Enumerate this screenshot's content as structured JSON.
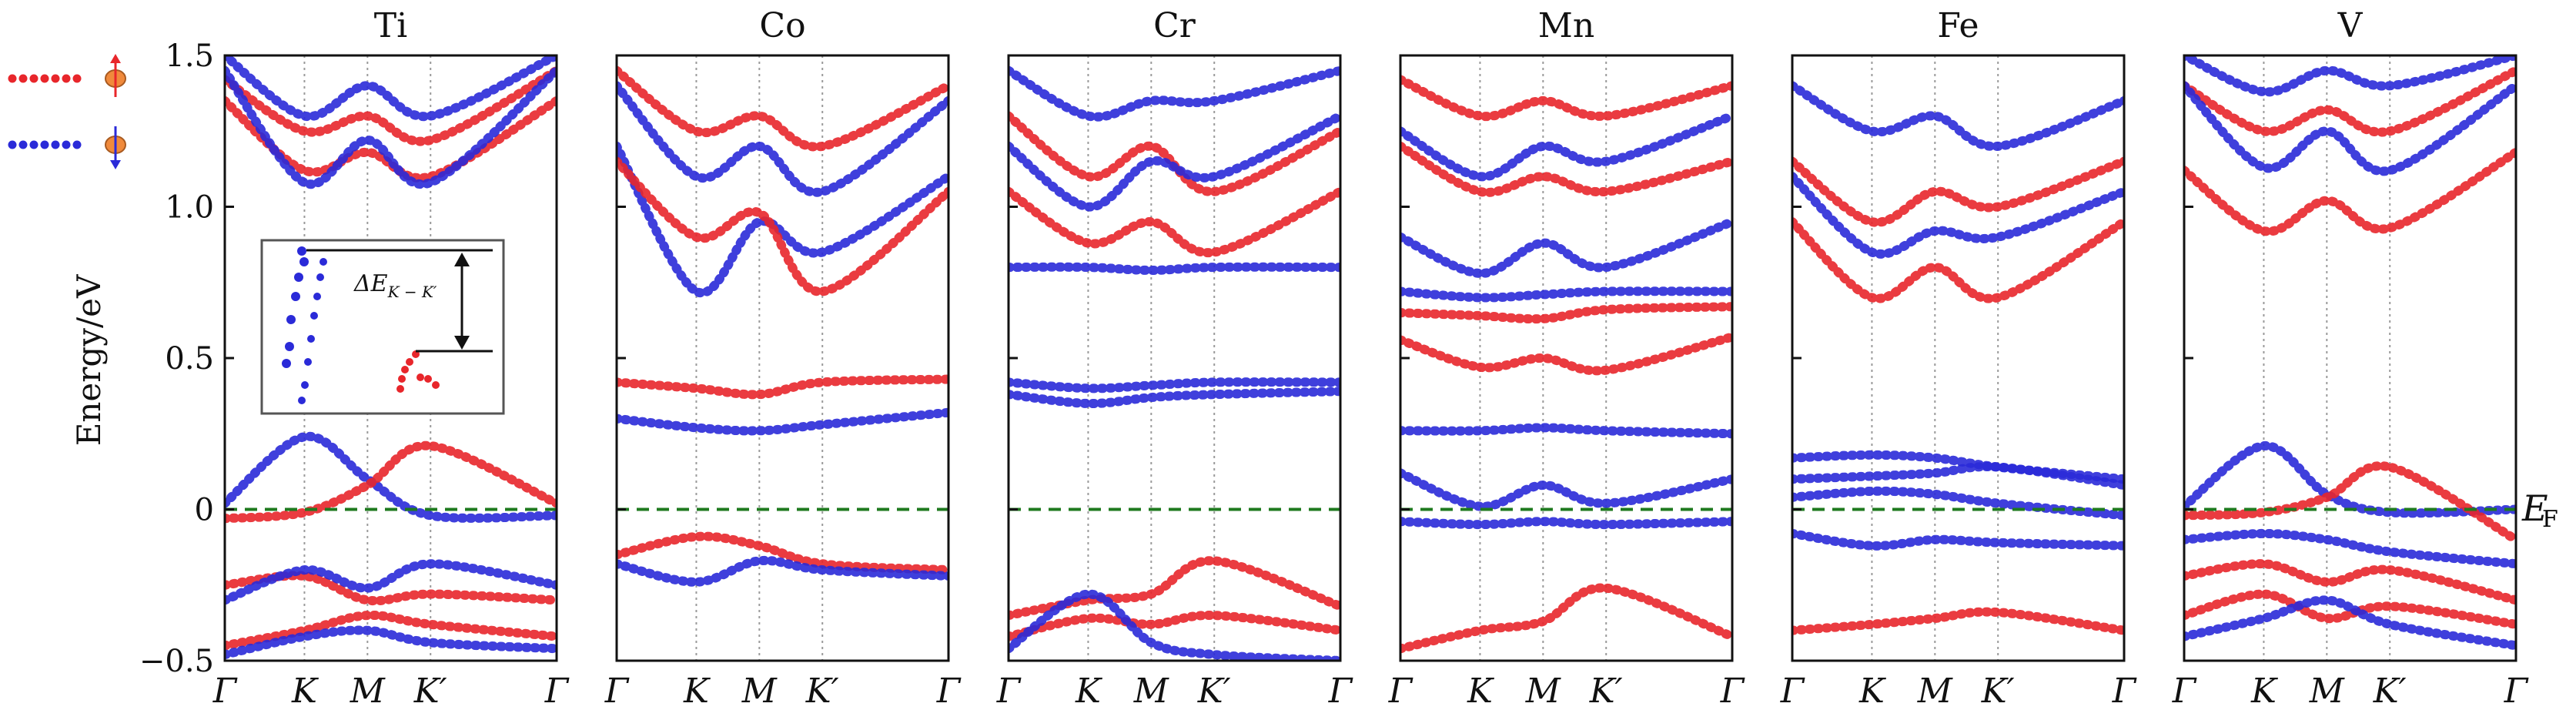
{
  "figure": {
    "ylabel": "Energy/eV",
    "fermi_label_main": "E",
    "fermi_label_sub": "F",
    "legend": [
      {
        "name": "spin-up",
        "color": "#e8262b",
        "icon": "spin-up-arrow-icon"
      },
      {
        "name": "spin-down",
        "color": "#2a2ad8",
        "icon": "spin-down-arrow-icon"
      }
    ],
    "colors": {
      "spin_up": "#e8262b",
      "spin_down": "#2a2ad8",
      "fermi": "#1f7a1f",
      "ball": "#f08a3c"
    },
    "inset": {
      "label_prefix": "ΔE",
      "label_sub": "K − K′"
    }
  },
  "chart_data": [
    {
      "type": "line",
      "title": "Ti",
      "xlabel": "",
      "ylabel": "Energy/eV",
      "ylim": [
        -0.5,
        1.5
      ],
      "yticks": [
        "1.5",
        "1.0",
        "0.5",
        "0",
        "−0.5"
      ],
      "ytick_values": [
        1.5,
        1.0,
        0.5,
        0,
        -0.5
      ],
      "kpoints": [
        "Γ",
        "K",
        "M",
        "K′",
        "Γ"
      ],
      "kpos": [
        0,
        0.24,
        0.43,
        0.62,
        1
      ],
      "fermi_level": 0,
      "series": [
        {
          "name": "Ti up 1",
          "spin": "up",
          "energies": [
            1.35,
            1.12,
            1.18,
            1.1,
            1.35
          ]
        },
        {
          "name": "Ti up 2",
          "spin": "up",
          "energies": [
            1.42,
            1.25,
            1.3,
            1.22,
            1.45
          ]
        },
        {
          "name": "Ti down 1",
          "spin": "down",
          "energies": [
            1.45,
            1.08,
            1.22,
            1.08,
            1.45
          ]
        },
        {
          "name": "Ti down 2",
          "spin": "down",
          "energies": [
            1.5,
            1.3,
            1.4,
            1.3,
            1.5
          ]
        },
        {
          "name": "Ti down valence",
          "spin": "down",
          "energies": [
            0.02,
            0.24,
            0.1,
            -0.02,
            -0.02
          ]
        },
        {
          "name": "Ti up valence",
          "spin": "up",
          "energies": [
            -0.03,
            -0.01,
            0.08,
            0.21,
            0.02
          ]
        },
        {
          "name": "Ti up low 1",
          "spin": "up",
          "energies": [
            -0.25,
            -0.22,
            -0.3,
            -0.28,
            -0.3
          ]
        },
        {
          "name": "Ti down low 1",
          "spin": "down",
          "energies": [
            -0.3,
            -0.2,
            -0.26,
            -0.18,
            -0.25
          ]
        },
        {
          "name": "Ti up low 2",
          "spin": "up",
          "energies": [
            -0.45,
            -0.4,
            -0.35,
            -0.38,
            -0.42
          ]
        },
        {
          "name": "Ti down low 2",
          "spin": "down",
          "energies": [
            -0.48,
            -0.42,
            -0.4,
            -0.44,
            -0.46
          ]
        }
      ]
    },
    {
      "type": "line",
      "title": "Co",
      "xlabel": "",
      "ylabel": "",
      "ylim": [
        -0.5,
        1.5
      ],
      "kpoints": [
        "Γ",
        "K",
        "M",
        "K′",
        "Γ"
      ],
      "kpos": [
        0,
        0.24,
        0.43,
        0.62,
        1
      ],
      "fermi_level": 0,
      "series": [
        {
          "name": "Co down 1",
          "spin": "down",
          "energies": [
            1.2,
            0.72,
            0.95,
            0.85,
            1.1
          ]
        },
        {
          "name": "Co up 1",
          "spin": "up",
          "energies": [
            1.15,
            0.9,
            0.98,
            0.72,
            1.05
          ]
        },
        {
          "name": "Co down 2",
          "spin": "down",
          "energies": [
            1.4,
            1.1,
            1.2,
            1.05,
            1.35
          ]
        },
        {
          "name": "Co up 2",
          "spin": "up",
          "energies": [
            1.45,
            1.25,
            1.3,
            1.2,
            1.4
          ]
        },
        {
          "name": "Co up mid",
          "spin": "up",
          "energies": [
            0.42,
            0.4,
            0.38,
            0.42,
            0.43
          ]
        },
        {
          "name": "Co down mid",
          "spin": "down",
          "energies": [
            0.3,
            0.27,
            0.26,
            0.28,
            0.32
          ]
        },
        {
          "name": "Co up low",
          "spin": "up",
          "energies": [
            -0.15,
            -0.09,
            -0.12,
            -0.18,
            -0.2
          ]
        },
        {
          "name": "Co down low",
          "spin": "down",
          "energies": [
            -0.18,
            -0.24,
            -0.17,
            -0.2,
            -0.22
          ]
        }
      ]
    },
    {
      "type": "line",
      "title": "Cr",
      "xlabel": "",
      "ylabel": "",
      "ylim": [
        -0.5,
        1.5
      ],
      "kpoints": [
        "Γ",
        "K",
        "M",
        "K′",
        "Γ"
      ],
      "kpos": [
        0,
        0.24,
        0.43,
        0.62,
        1
      ],
      "fermi_level": 0,
      "series": [
        {
          "name": "Cr up 1",
          "spin": "up",
          "energies": [
            1.05,
            0.88,
            0.95,
            0.85,
            1.05
          ]
        },
        {
          "name": "Cr up 2",
          "spin": "up",
          "energies": [
            1.3,
            1.1,
            1.2,
            1.05,
            1.25
          ]
        },
        {
          "name": "Cr down 1",
          "spin": "down",
          "energies": [
            1.2,
            1.0,
            1.15,
            1.1,
            1.3
          ]
        },
        {
          "name": "Cr down 2",
          "spin": "down",
          "energies": [
            1.45,
            1.3,
            1.35,
            1.35,
            1.45
          ]
        },
        {
          "name": "Cr down flat",
          "spin": "down",
          "energies": [
            0.8,
            0.8,
            0.79,
            0.8,
            0.8
          ]
        },
        {
          "name": "Cr down mid 1",
          "spin": "down",
          "energies": [
            0.42,
            0.4,
            0.41,
            0.42,
            0.42
          ]
        },
        {
          "name": "Cr down mid 2",
          "spin": "down",
          "energies": [
            0.38,
            0.35,
            0.37,
            0.38,
            0.39
          ]
        },
        {
          "name": "Cr up low",
          "spin": "up",
          "energies": [
            -0.35,
            -0.3,
            -0.28,
            -0.17,
            -0.32
          ]
        },
        {
          "name": "Cr up low 2",
          "spin": "up",
          "energies": [
            -0.42,
            -0.36,
            -0.38,
            -0.35,
            -0.4
          ]
        },
        {
          "name": "Cr down low",
          "spin": "down",
          "energies": [
            -0.46,
            -0.28,
            -0.44,
            -0.48,
            -0.5
          ]
        }
      ]
    },
    {
      "type": "line",
      "title": "Mn",
      "xlabel": "",
      "ylabel": "",
      "ylim": [
        -0.5,
        1.5
      ],
      "kpoints": [
        "Γ",
        "K",
        "M",
        "K′",
        "Γ"
      ],
      "kpos": [
        0,
        0.24,
        0.43,
        0.62,
        1
      ],
      "fermi_level": 0,
      "series": [
        {
          "name": "Mn up 1",
          "spin": "up",
          "energies": [
            1.2,
            1.05,
            1.1,
            1.05,
            1.15
          ]
        },
        {
          "name": "Mn up 2",
          "spin": "up",
          "energies": [
            1.42,
            1.3,
            1.35,
            1.3,
            1.4
          ]
        },
        {
          "name": "Mn down 1",
          "spin": "down",
          "energies": [
            0.9,
            0.78,
            0.88,
            0.8,
            0.95
          ]
        },
        {
          "name": "Mn down 2",
          "spin": "down",
          "energies": [
            1.25,
            1.1,
            1.2,
            1.15,
            1.3
          ]
        },
        {
          "name": "Mn down 3",
          "spin": "down",
          "energies": [
            0.72,
            0.7,
            0.71,
            0.72,
            0.72
          ]
        },
        {
          "name": "Mn up flat",
          "spin": "up",
          "energies": [
            0.65,
            0.64,
            0.63,
            0.66,
            0.67
          ]
        },
        {
          "name": "Mn up mid",
          "spin": "up",
          "energies": [
            0.56,
            0.47,
            0.5,
            0.46,
            0.57
          ]
        },
        {
          "name": "Mn down mid",
          "spin": "down",
          "energies": [
            0.26,
            0.26,
            0.27,
            0.26,
            0.25
          ]
        },
        {
          "name": "Mn down near EF",
          "spin": "down",
          "energies": [
            0.12,
            0.01,
            0.08,
            0.02,
            0.1
          ]
        },
        {
          "name": "Mn down below EF",
          "spin": "down",
          "energies": [
            -0.04,
            -0.05,
            -0.04,
            -0.05,
            -0.04
          ]
        },
        {
          "name": "Mn up low",
          "spin": "up",
          "energies": [
            -0.46,
            -0.4,
            -0.37,
            -0.26,
            -0.42
          ]
        }
      ]
    },
    {
      "type": "line",
      "title": "Fe",
      "xlabel": "",
      "ylabel": "",
      "ylim": [
        -0.5,
        1.5
      ],
      "kpoints": [
        "Γ",
        "K",
        "M",
        "K′",
        "Γ"
      ],
      "kpos": [
        0,
        0.24,
        0.43,
        0.62,
        1
      ],
      "fermi_level": 0,
      "series": [
        {
          "name": "Fe up 1",
          "spin": "up",
          "energies": [
            0.95,
            0.7,
            0.8,
            0.7,
            0.95
          ]
        },
        {
          "name": "Fe up 2",
          "spin": "up",
          "energies": [
            1.15,
            0.95,
            1.05,
            1.0,
            1.15
          ]
        },
        {
          "name": "Fe down 1",
          "spin": "down",
          "energies": [
            1.1,
            0.85,
            0.92,
            0.9,
            1.05
          ]
        },
        {
          "name": "Fe down 2",
          "spin": "down",
          "energies": [
            1.4,
            1.25,
            1.3,
            1.2,
            1.35
          ]
        },
        {
          "name": "Fe down mid",
          "spin": "down",
          "energies": [
            0.17,
            0.18,
            0.17,
            0.14,
            0.1
          ]
        },
        {
          "name": "Fe down mid 2",
          "spin": "down",
          "energies": [
            0.1,
            0.11,
            0.12,
            0.14,
            0.08
          ]
        },
        {
          "name": "Fe down near EF",
          "spin": "down",
          "energies": [
            0.04,
            0.06,
            0.05,
            0.02,
            -0.02
          ]
        },
        {
          "name": "Fe down low",
          "spin": "down",
          "energies": [
            -0.08,
            -0.12,
            -0.1,
            -0.11,
            -0.12
          ]
        },
        {
          "name": "Fe up low",
          "spin": "up",
          "energies": [
            -0.4,
            -0.38,
            -0.36,
            -0.34,
            -0.4
          ]
        }
      ]
    },
    {
      "type": "line",
      "title": "V",
      "xlabel": "",
      "ylabel": "",
      "ylim": [
        -0.5,
        1.5
      ],
      "kpoints": [
        "Γ",
        "K",
        "M",
        "K′",
        "Γ"
      ],
      "kpos": [
        0,
        0.24,
        0.43,
        0.62,
        1
      ],
      "fermi_level": 0,
      "series": [
        {
          "name": "V up 1",
          "spin": "up",
          "energies": [
            1.12,
            0.92,
            1.02,
            0.93,
            1.18
          ]
        },
        {
          "name": "V up 2",
          "spin": "up",
          "energies": [
            1.4,
            1.25,
            1.32,
            1.25,
            1.45
          ]
        },
        {
          "name": "V down 1",
          "spin": "down",
          "energies": [
            1.4,
            1.13,
            1.25,
            1.12,
            1.4
          ]
        },
        {
          "name": "V down 2",
          "spin": "down",
          "energies": [
            1.5,
            1.38,
            1.45,
            1.4,
            1.5
          ]
        },
        {
          "name": "V down valence",
          "spin": "down",
          "energies": [
            0.01,
            0.21,
            0.05,
            -0.01,
            0.0
          ]
        },
        {
          "name": "V up valence",
          "spin": "up",
          "energies": [
            -0.02,
            -0.01,
            0.04,
            0.14,
            -0.1
          ]
        },
        {
          "name": "V down low 1",
          "spin": "down",
          "energies": [
            -0.1,
            -0.08,
            -0.1,
            -0.14,
            -0.18
          ]
        },
        {
          "name": "V up low 1",
          "spin": "up",
          "energies": [
            -0.22,
            -0.18,
            -0.24,
            -0.2,
            -0.3
          ]
        },
        {
          "name": "V up low 2",
          "spin": "up",
          "energies": [
            -0.35,
            -0.28,
            -0.36,
            -0.32,
            -0.38
          ]
        },
        {
          "name": "V down low 2",
          "spin": "down",
          "energies": [
            -0.42,
            -0.36,
            -0.3,
            -0.38,
            -0.45
          ]
        }
      ]
    }
  ]
}
